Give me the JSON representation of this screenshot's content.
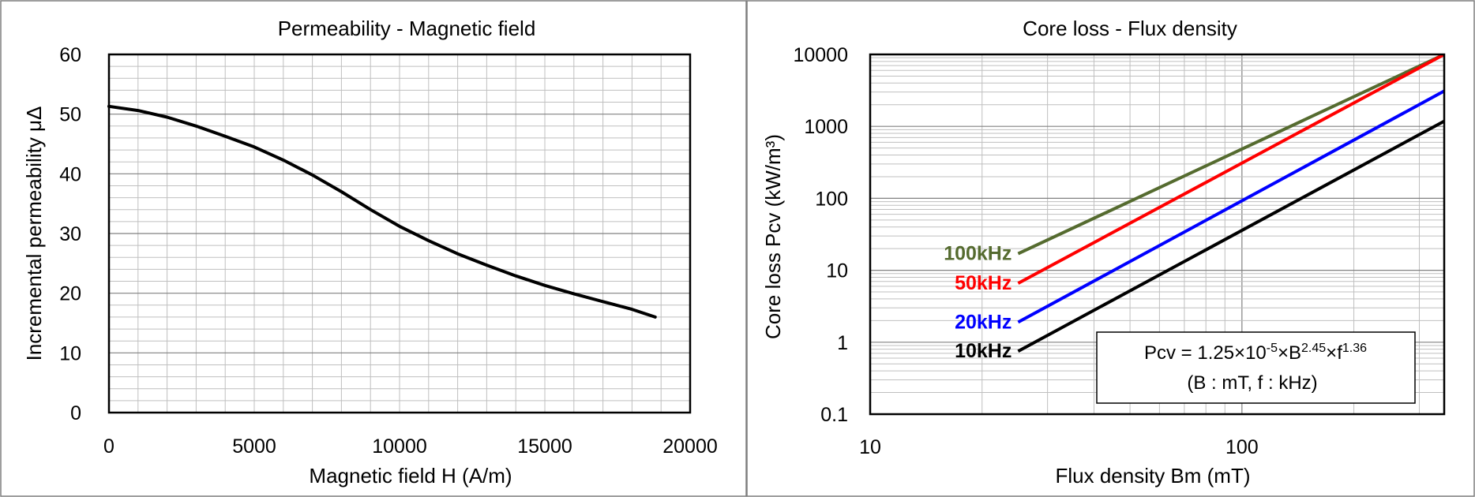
{
  "chart_data": [
    {
      "type": "line",
      "title": "Permeability - Magnetic field",
      "xlabel": "Magnetic field  H (A/m)",
      "ylabel": "Incremental permeability  μΔ",
      "xlim": [
        0,
        20000
      ],
      "ylim": [
        0,
        60
      ],
      "xticks": [
        "0",
        "5000",
        "10000",
        "15000",
        "20000"
      ],
      "yticks": [
        "0",
        "10",
        "20",
        "30",
        "40",
        "50",
        "60"
      ],
      "grid": true,
      "series": [
        {
          "color": "#000000",
          "x": [
            0,
            1000,
            2000,
            3000,
            4000,
            5000,
            6000,
            7000,
            8000,
            9000,
            10000,
            11000,
            12000,
            13000,
            14000,
            15000,
            16000,
            17000,
            18000,
            18800
          ],
          "y": [
            51.3,
            50.6,
            49.5,
            48.0,
            46.3,
            44.5,
            42.3,
            39.8,
            37.0,
            34.0,
            31.2,
            28.8,
            26.6,
            24.7,
            22.9,
            21.3,
            19.9,
            18.6,
            17.3,
            16.0
          ]
        }
      ]
    },
    {
      "type": "line",
      "title": "Core loss - Flux density",
      "xlabel": "Flux density  Bm (mT)",
      "ylabel": "Core loss  Pcv (kW/m³)",
      "xscale": "log",
      "yscale": "log",
      "xlim": [
        10,
        350
      ],
      "ylim": [
        0.1,
        10000
      ],
      "xticks": [
        "10",
        "100"
      ],
      "yticks": [
        "0.1",
        "1",
        "10",
        "100",
        "1000",
        "10000"
      ],
      "grid": true,
      "formula": {
        "line1_prefix": "Pcv = 1.25×10",
        "line1_exp1": "-5",
        "line1_mid": "×B",
        "line1_exp2": "2.45",
        "line1_mid2": "×f",
        "line1_exp3": "1.36",
        "line2": "(B : mT, f : kHz)"
      },
      "series": [
        {
          "name": "100kHz",
          "color": "#556b2f",
          "x": [
            25,
            350
          ],
          "y": [
            17.0,
            10000
          ]
        },
        {
          "name": "50kHz",
          "color": "#ff0000",
          "x": [
            25,
            350
          ],
          "y": [
            6.6,
            10000
          ]
        },
        {
          "name": "20kHz",
          "color": "#0000ff",
          "x": [
            25,
            350
          ],
          "y": [
            1.9,
            3100
          ]
        },
        {
          "name": "10kHz",
          "color": "#000000",
          "x": [
            25,
            350
          ],
          "y": [
            0.75,
            1180
          ]
        }
      ]
    }
  ]
}
